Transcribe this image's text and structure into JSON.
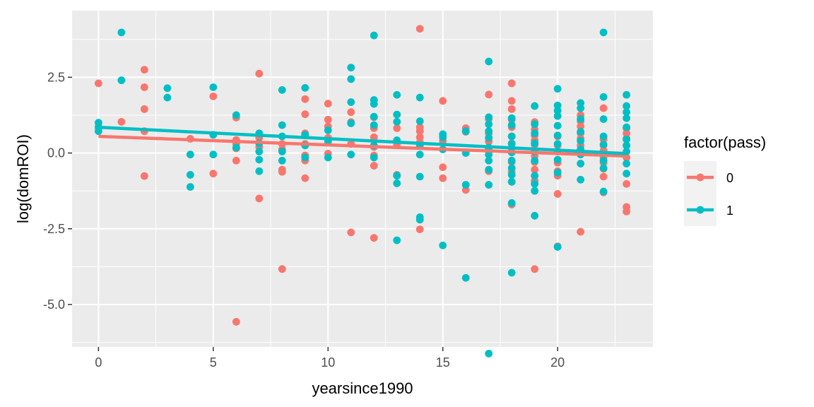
{
  "chart_data": {
    "type": "scatter",
    "xlabel": "yearsince1990",
    "ylabel": "log(domROI)",
    "xlim": [
      -1.15,
      24.15
    ],
    "ylim": [
      -6.4,
      4.7
    ],
    "x_ticks": [
      0,
      5,
      10,
      15,
      20
    ],
    "x_tick_labels": [
      "0",
      "5",
      "10",
      "15",
      "20"
    ],
    "y_ticks": [
      -5.0,
      -2.5,
      0.0,
      2.5
    ],
    "y_tick_labels": [
      "-5.0",
      "-2.5",
      "0.0",
      "2.5"
    ],
    "grid": true,
    "legend": {
      "title": "factor(pass)",
      "position": "right",
      "entries": [
        {
          "label": "0",
          "color": "#F8766D"
        },
        {
          "label": "1",
          "color": "#00BFC4"
        }
      ]
    },
    "series": [
      {
        "name": "0",
        "color": "#F8766D",
        "trend": [
          [
            0,
            0.55
          ],
          [
            23,
            -0.1
          ]
        ],
        "points": [
          [
            0,
            2.3
          ],
          [
            1,
            1.03
          ],
          [
            2,
            2.75
          ],
          [
            2,
            2.17
          ],
          [
            2,
            1.45
          ],
          [
            2,
            0.72
          ],
          [
            2,
            -0.76
          ],
          [
            4,
            0.47
          ],
          [
            5,
            1.87
          ],
          [
            5,
            -0.68
          ],
          [
            6,
            1.17
          ],
          [
            6,
            0.43
          ],
          [
            6,
            0.3
          ],
          [
            6,
            0.15
          ],
          [
            6,
            -0.25
          ],
          [
            6,
            -5.57
          ],
          [
            7,
            2.62
          ],
          [
            7,
            0.5
          ],
          [
            7,
            0.2
          ],
          [
            7,
            -1.5
          ],
          [
            8,
            0.3
          ],
          [
            8,
            0.12
          ],
          [
            8,
            -0.55
          ],
          [
            8,
            -0.62
          ],
          [
            8,
            -3.83
          ],
          [
            9,
            1.78
          ],
          [
            9,
            1.28
          ],
          [
            9,
            0.65
          ],
          [
            9,
            0.3
          ],
          [
            9,
            -0.08
          ],
          [
            9,
            -0.25
          ],
          [
            9,
            -0.83
          ],
          [
            10,
            1.63
          ],
          [
            10,
            1.1
          ],
          [
            10,
            0.88
          ],
          [
            10,
            0.5
          ],
          [
            10,
            -0.02
          ],
          [
            11,
            1.35
          ],
          [
            11,
            1.02
          ],
          [
            11,
            0.3
          ],
          [
            11,
            -2.62
          ],
          [
            12,
            1.18
          ],
          [
            12,
            0.82
          ],
          [
            12,
            0.52
          ],
          [
            12,
            0.2
          ],
          [
            12,
            -0.08
          ],
          [
            12,
            -0.42
          ],
          [
            12,
            -2.8
          ],
          [
            13,
            0.82
          ],
          [
            13,
            0.28
          ],
          [
            13,
            -0.72
          ],
          [
            14,
            4.1
          ],
          [
            14,
            0.85
          ],
          [
            14,
            0.72
          ],
          [
            14,
            0.52
          ],
          [
            14,
            0.35
          ],
          [
            14,
            -2.52
          ],
          [
            15,
            1.72
          ],
          [
            15,
            0.4
          ],
          [
            15,
            -0.47
          ],
          [
            15,
            -0.83
          ],
          [
            16,
            0.82
          ],
          [
            16,
            0.7
          ],
          [
            16,
            -1.22
          ],
          [
            17,
            1.93
          ],
          [
            17,
            1.12
          ],
          [
            17,
            0.65
          ],
          [
            17,
            0.38
          ],
          [
            17,
            0.1
          ],
          [
            17,
            -0.6
          ],
          [
            18,
            2.3
          ],
          [
            18,
            1.72
          ],
          [
            18,
            1.45
          ],
          [
            18,
            1.1
          ],
          [
            18,
            0.85
          ],
          [
            18,
            0.55
          ],
          [
            18,
            0.32
          ],
          [
            18,
            0.15
          ],
          [
            18,
            -0.3
          ],
          [
            18,
            -0.62
          ],
          [
            18,
            -0.95
          ],
          [
            18,
            -1.7
          ],
          [
            19,
            1.02
          ],
          [
            19,
            0.78
          ],
          [
            19,
            0.58
          ],
          [
            19,
            0.42
          ],
          [
            19,
            0.28
          ],
          [
            19,
            0.12
          ],
          [
            19,
            -0.1
          ],
          [
            19,
            -0.3
          ],
          [
            19,
            -0.55
          ],
          [
            19,
            -0.92
          ],
          [
            19,
            -3.83
          ],
          [
            20,
            0.55
          ],
          [
            20,
            0.25
          ],
          [
            20,
            0.05
          ],
          [
            20,
            -0.32
          ],
          [
            20,
            -0.6
          ],
          [
            20,
            -0.75
          ],
          [
            20,
            -1.35
          ],
          [
            20,
            -3.08
          ],
          [
            21,
            1.25
          ],
          [
            21,
            1.05
          ],
          [
            21,
            0.88
          ],
          [
            21,
            0.65
          ],
          [
            21,
            0.48
          ],
          [
            21,
            0.25
          ],
          [
            21,
            0.05
          ],
          [
            21,
            -2.6
          ],
          [
            22,
            1.48
          ],
          [
            22,
            0.45
          ],
          [
            22,
            0.25
          ],
          [
            22,
            0.08
          ],
          [
            22,
            -0.15
          ],
          [
            22,
            -0.32
          ],
          [
            22,
            -0.52
          ],
          [
            22,
            -0.78
          ],
          [
            22,
            -1.3
          ],
          [
            23,
            0.82
          ],
          [
            23,
            0.65
          ],
          [
            23,
            0.48
          ],
          [
            23,
            0.25
          ],
          [
            23,
            -0.15
          ],
          [
            23,
            -1.02
          ],
          [
            23,
            -1.78
          ],
          [
            23,
            -1.93
          ]
        ]
      },
      {
        "name": "1",
        "color": "#00BFC4",
        "trend": [
          [
            0,
            0.85
          ],
          [
            23,
            -0.02
          ]
        ],
        "points": [
          [
            0,
            1.0
          ],
          [
            0,
            0.85
          ],
          [
            0,
            0.72
          ],
          [
            1,
            3.98
          ],
          [
            1,
            2.4
          ],
          [
            3,
            2.14
          ],
          [
            3,
            1.83
          ],
          [
            4,
            -0.05
          ],
          [
            4,
            -0.72
          ],
          [
            4,
            -1.12
          ],
          [
            5,
            2.17
          ],
          [
            5,
            0.6
          ],
          [
            5,
            -0.05
          ],
          [
            6,
            1.25
          ],
          [
            6,
            0.18
          ],
          [
            7,
            0.65
          ],
          [
            7,
            0.32
          ],
          [
            7,
            0.05
          ],
          [
            7,
            -0.22
          ],
          [
            7,
            -0.6
          ],
          [
            8,
            2.08
          ],
          [
            8,
            0.92
          ],
          [
            8,
            0.55
          ],
          [
            8,
            0.05
          ],
          [
            8,
            -0.25
          ],
          [
            9,
            2.15
          ],
          [
            9,
            0.6
          ],
          [
            9,
            0.25
          ],
          [
            9,
            -0.15
          ],
          [
            10,
            0.75
          ],
          [
            10,
            0.38
          ],
          [
            10,
            -0.15
          ],
          [
            11,
            2.82
          ],
          [
            11,
            2.44
          ],
          [
            11,
            1.68
          ],
          [
            11,
            0.98
          ],
          [
            11,
            -0.05
          ],
          [
            12,
            3.88
          ],
          [
            12,
            1.75
          ],
          [
            12,
            1.62
          ],
          [
            12,
            1.2
          ],
          [
            12,
            0.92
          ],
          [
            12,
            0.25
          ],
          [
            12,
            -0.15
          ],
          [
            13,
            1.92
          ],
          [
            13,
            1.27
          ],
          [
            13,
            1.03
          ],
          [
            13,
            0.42
          ],
          [
            13,
            -0.75
          ],
          [
            13,
            -1.0
          ],
          [
            13,
            -2.88
          ],
          [
            14,
            1.83
          ],
          [
            14,
            1.05
          ],
          [
            14,
            0.25
          ],
          [
            14,
            -0.05
          ],
          [
            14,
            -0.78
          ],
          [
            14,
            -2.12
          ],
          [
            14,
            -2.2
          ],
          [
            15,
            0.62
          ],
          [
            15,
            0.52
          ],
          [
            15,
            0.12
          ],
          [
            15,
            -3.05
          ],
          [
            16,
            0.72
          ],
          [
            16,
            0.0
          ],
          [
            16,
            -1.05
          ],
          [
            16,
            -4.12
          ],
          [
            17,
            3.02
          ],
          [
            17,
            1.18
          ],
          [
            17,
            0.95
          ],
          [
            17,
            0.72
          ],
          [
            17,
            0.5
          ],
          [
            17,
            0.18
          ],
          [
            17,
            -0.05
          ],
          [
            17,
            -0.25
          ],
          [
            17,
            -0.55
          ],
          [
            17,
            -1.05
          ],
          [
            17,
            -6.62
          ],
          [
            18,
            1.15
          ],
          [
            18,
            0.92
          ],
          [
            18,
            0.55
          ],
          [
            18,
            0.3
          ],
          [
            18,
            0.02
          ],
          [
            18,
            -0.25
          ],
          [
            18,
            -0.5
          ],
          [
            18,
            -0.72
          ],
          [
            18,
            -0.95
          ],
          [
            18,
            -1.65
          ],
          [
            18,
            -3.95
          ],
          [
            19,
            1.55
          ],
          [
            19,
            0.95
          ],
          [
            19,
            0.65
          ],
          [
            19,
            0.32
          ],
          [
            19,
            0.05
          ],
          [
            19,
            -0.25
          ],
          [
            19,
            -0.75
          ],
          [
            19,
            -1.02
          ],
          [
            19,
            -1.25
          ],
          [
            19,
            -2.07
          ],
          [
            20,
            2.12
          ],
          [
            20,
            1.57
          ],
          [
            20,
            1.4
          ],
          [
            20,
            1.22
          ],
          [
            20,
            0.9
          ],
          [
            20,
            0.58
          ],
          [
            20,
            0.3
          ],
          [
            20,
            0.05
          ],
          [
            20,
            -0.22
          ],
          [
            20,
            -0.65
          ],
          [
            20,
            -3.1
          ],
          [
            21,
            1.65
          ],
          [
            21,
            1.48
          ],
          [
            21,
            1.12
          ],
          [
            21,
            0.7
          ],
          [
            21,
            0.4
          ],
          [
            21,
            0.12
          ],
          [
            21,
            -0.05
          ],
          [
            21,
            -0.35
          ],
          [
            21,
            -0.88
          ],
          [
            22,
            3.98
          ],
          [
            22,
            1.85
          ],
          [
            22,
            1.12
          ],
          [
            22,
            0.55
          ],
          [
            22,
            0.28
          ],
          [
            22,
            -0.25
          ],
          [
            22,
            -0.5
          ],
          [
            22,
            -1.27
          ],
          [
            23,
            1.92
          ],
          [
            23,
            1.55
          ],
          [
            23,
            1.35
          ],
          [
            23,
            1.15
          ],
          [
            23,
            0.85
          ],
          [
            23,
            0.45
          ],
          [
            23,
            0.25
          ],
          [
            23,
            0.05
          ],
          [
            23,
            -0.35
          ],
          [
            23,
            -0.68
          ]
        ]
      }
    ]
  }
}
